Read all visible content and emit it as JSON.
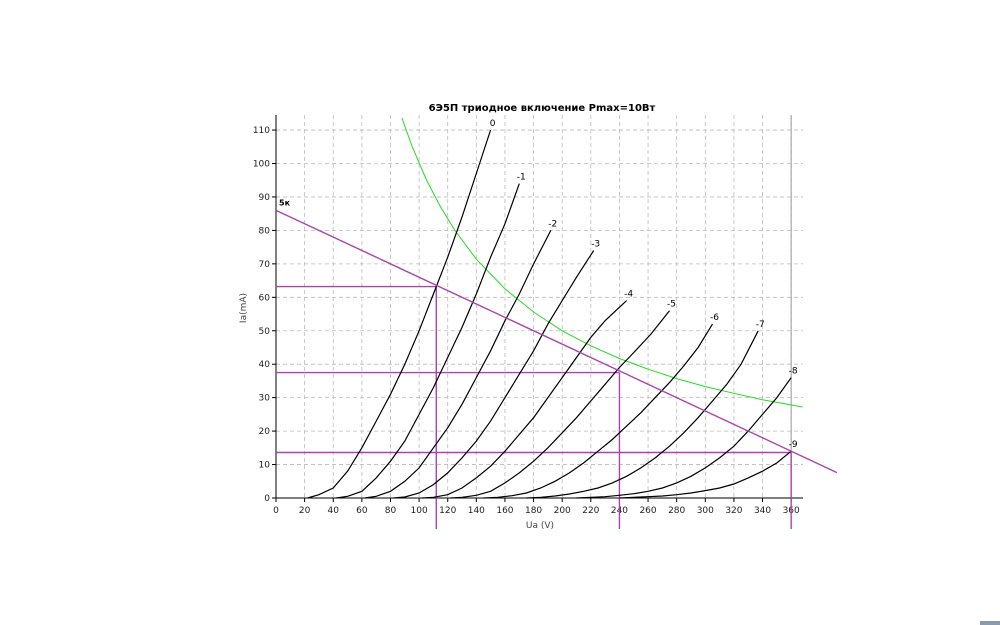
{
  "chart_data": {
    "type": "line",
    "title": "6Э5П триодное включение Pmax=10Вт",
    "xlabel": "Ua (V)",
    "ylabel": "Ia(mA)",
    "xlim": [
      0,
      368
    ],
    "ylim": [
      0,
      112
    ],
    "x_ticks": [
      0,
      20,
      40,
      60,
      80,
      100,
      120,
      140,
      160,
      180,
      200,
      220,
      240,
      260,
      280,
      300,
      320,
      340,
      360
    ],
    "y_ticks": [
      0,
      10,
      20,
      30,
      40,
      50,
      60,
      70,
      80,
      90,
      100,
      110
    ],
    "grid": true,
    "series": [
      {
        "name": "0",
        "x": [
          22,
          30,
          40,
          50,
          60,
          70,
          80,
          90,
          100,
          110,
          120,
          130,
          140,
          150
        ],
        "y": [
          0,
          1,
          3,
          8,
          15,
          23,
          31,
          40,
          50,
          61,
          72,
          84,
          97,
          110
        ]
      },
      {
        "name": "-1",
        "x": [
          42,
          50,
          60,
          70,
          80,
          90,
          100,
          110,
          120,
          130,
          140,
          150,
          160,
          170
        ],
        "y": [
          0,
          0.5,
          2,
          6,
          11,
          17,
          25,
          33,
          42,
          51,
          61,
          72,
          82,
          94
        ]
      },
      {
        "name": "-2",
        "x": [
          62,
          70,
          80,
          90,
          100,
          110,
          120,
          130,
          140,
          150,
          160,
          170,
          180,
          192
        ],
        "y": [
          0,
          0.5,
          2,
          5,
          9,
          15,
          21,
          28,
          36,
          44,
          53,
          61,
          70,
          80
        ]
      },
      {
        "name": "-3",
        "x": [
          82,
          90,
          100,
          110,
          120,
          130,
          140,
          150,
          160,
          170,
          180,
          190,
          200,
          210,
          222
        ],
        "y": [
          0,
          0.3,
          1.5,
          4,
          7.5,
          12,
          17,
          23,
          30,
          37,
          44,
          52,
          59,
          66,
          74
        ]
      },
      {
        "name": "-4",
        "x": [
          102,
          110,
          120,
          130,
          140,
          150,
          160,
          170,
          180,
          190,
          200,
          210,
          220,
          230,
          245
        ],
        "y": [
          0,
          0.2,
          1,
          3,
          6,
          9.5,
          14,
          19,
          24,
          30,
          36,
          42,
          48,
          53,
          59
        ]
      },
      {
        "name": "-5",
        "x": [
          122,
          130,
          140,
          150,
          160,
          170,
          180,
          190,
          200,
          210,
          220,
          230,
          240,
          250,
          262,
          275
        ],
        "y": [
          0,
          0.2,
          0.8,
          2,
          4.5,
          7.5,
          11,
          15,
          19.5,
          24,
          29,
          34,
          39,
          43.5,
          49,
          56
        ]
      },
      {
        "name": "-6",
        "x": [
          145,
          155,
          165,
          175,
          185,
          195,
          205,
          215,
          225,
          235,
          245,
          255,
          265,
          275,
          285,
          295,
          305
        ],
        "y": [
          0,
          0.2,
          0.7,
          1.5,
          3,
          5,
          7.5,
          10.5,
          14,
          17.5,
          21.5,
          25.5,
          30,
          34.5,
          39.5,
          45,
          52
        ]
      },
      {
        "name": "-7",
        "x": [
          175,
          185,
          195,
          205,
          215,
          225,
          235,
          245,
          255,
          265,
          275,
          285,
          295,
          305,
          315,
          325,
          337
        ],
        "y": [
          0,
          0.2,
          0.6,
          1.2,
          2,
          3,
          4.5,
          6.5,
          9,
          12,
          15.5,
          19.5,
          24,
          29,
          34,
          40,
          50
        ]
      },
      {
        "name": "-8",
        "x": [
          210,
          220,
          230,
          240,
          250,
          260,
          270,
          280,
          290,
          300,
          310,
          320,
          330,
          340,
          350,
          360
        ],
        "y": [
          0,
          0.2,
          0.4,
          0.8,
          1.3,
          2,
          3,
          4.5,
          6.5,
          9,
          12,
          15.5,
          20,
          25,
          30,
          36
        ]
      },
      {
        "name": "-9",
        "x": [
          240,
          250,
          260,
          270,
          280,
          290,
          300,
          310,
          320,
          330,
          340,
          350,
          360
        ],
        "y": [
          0,
          0.2,
          0.4,
          0.6,
          1,
          1.5,
          2.2,
          3,
          4.2,
          6,
          8,
          10.5,
          14
        ]
      }
    ],
    "pmax_curve": {
      "color": "#22dd22",
      "x": [
        88,
        95,
        105,
        115,
        125,
        140,
        160,
        180,
        200,
        220,
        240,
        260,
        280,
        300,
        320,
        340,
        368
      ],
      "y": [
        113.6,
        105.3,
        95.2,
        87,
        80,
        71.4,
        62.5,
        55.6,
        50,
        45.5,
        41.7,
        38.5,
        35.7,
        33.3,
        31.3,
        29.4,
        27.2
      ]
    },
    "load_line": {
      "label": "5к",
      "color": "#aa44aa",
      "x": [
        0,
        392
      ],
      "y": [
        86,
        7.6
      ]
    },
    "operating_points": {
      "color": "#aa44aa",
      "points": [
        {
          "x": 112,
          "y": 63.2
        },
        {
          "x": 240,
          "y": 37.5
        },
        {
          "x": 360,
          "y": 13.6
        }
      ]
    },
    "colors": {
      "curves": "#000000",
      "grid": "#bbbbbb",
      "axis": "#000000"
    }
  }
}
